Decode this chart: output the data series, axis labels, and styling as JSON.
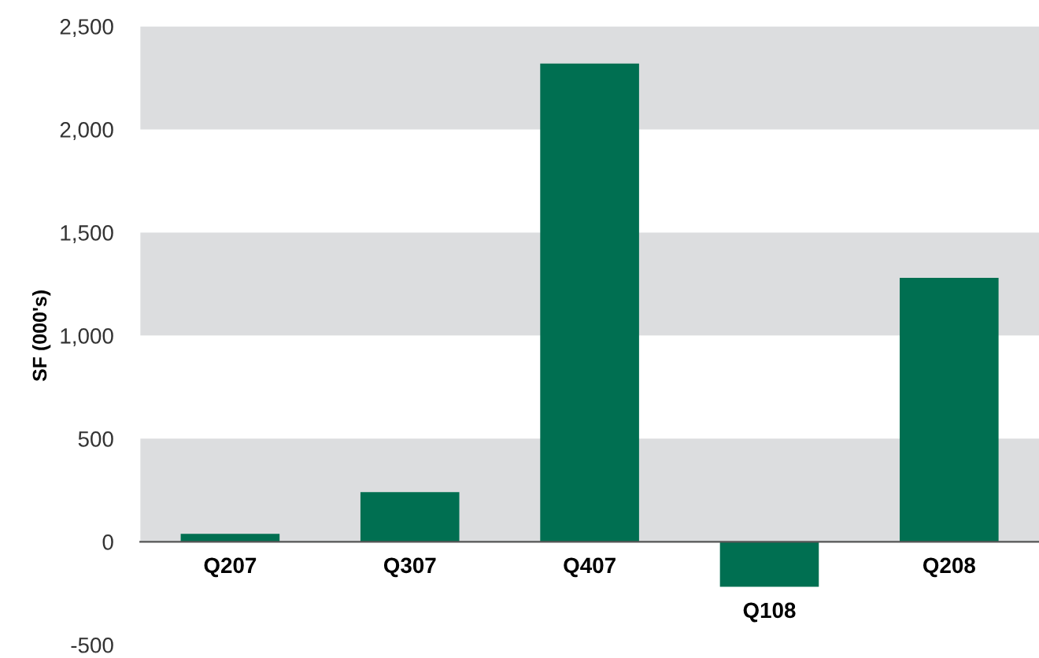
{
  "chart_data": {
    "type": "bar",
    "ylabel": "SF (000's)",
    "categories": [
      "Q207",
      "Q307",
      "Q407",
      "Q108",
      "Q208"
    ],
    "values": [
      38,
      241,
      2319,
      -218,
      1280
    ],
    "color": "#006f51",
    "ylim": [
      -500,
      2500
    ],
    "yticks": [
      {
        "value": -500,
        "label": "-500"
      },
      {
        "value": 0,
        "label": "0"
      },
      {
        "value": 500,
        "label": "500"
      },
      {
        "value": 1000,
        "label": "1,000"
      },
      {
        "value": 1500,
        "label": "1,500"
      },
      {
        "value": 2000,
        "label": "2,000"
      },
      {
        "value": 2500,
        "label": "2,500"
      }
    ],
    "bands": [
      {
        "axis": "y",
        "from": 0,
        "to": 500,
        "color": "#dcdddf"
      },
      {
        "axis": "y",
        "from": 1000,
        "to": 1500,
        "color": "#dcdddf"
      },
      {
        "axis": "y",
        "from": 2000,
        "to": 2500,
        "color": "#dcdddf"
      }
    ]
  }
}
